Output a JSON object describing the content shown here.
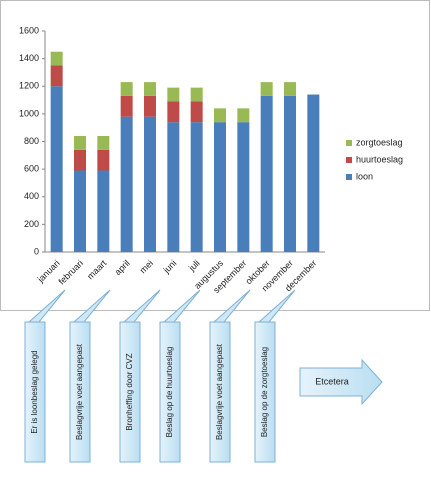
{
  "chart_data": {
    "type": "bar",
    "stacked": true,
    "categories": [
      "januari",
      "februari",
      "maart",
      "april",
      "mei",
      "juni",
      "juli",
      "augustus",
      "september",
      "oktober",
      "november",
      "december"
    ],
    "series": [
      {
        "name": "loon",
        "color": "#4a7ebb",
        "values": [
          1200,
          590,
          590,
          980,
          980,
          940,
          940,
          940,
          940,
          1130,
          1130,
          1140
        ]
      },
      {
        "name": "huurtoeslag",
        "color": "#be4b48",
        "values": [
          150,
          150,
          150,
          150,
          150,
          150,
          150,
          0,
          0,
          0,
          0,
          0
        ]
      },
      {
        "name": "zorgtoeslag",
        "color": "#98b954",
        "values": [
          100,
          100,
          100,
          100,
          100,
          100,
          100,
          100,
          100,
          100,
          100,
          0
        ]
      }
    ],
    "ylim": [
      0,
      1600
    ],
    "yticks": [
      0,
      200,
      400,
      600,
      800,
      1000,
      1200,
      1400,
      1600
    ],
    "grid": false,
    "legend": "right",
    "annotations": [
      "Er is loonbeslag gelegd",
      "Beslagvrije voet aangepast",
      "Bronheffing door CVZ",
      "Beslag op de huurtoeslag",
      "Beslagvrije voet aangepast",
      "Beslag op de zorgtoeslag"
    ],
    "arrow_label": "Etcetera"
  }
}
